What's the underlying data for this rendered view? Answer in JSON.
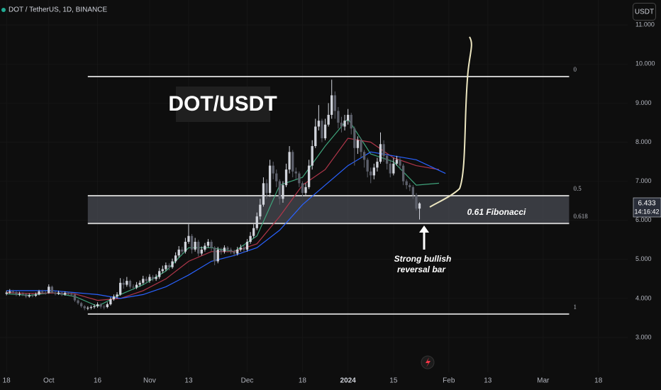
{
  "header": "DOT / TetherUS, 1D, BINANCE",
  "currency_button": "USDT",
  "countdown": "14:16:42",
  "chart_data": {
    "type": "candlestick",
    "title": "DOT/USDT",
    "x": [
      "2023-09-18",
      "2023-09-19",
      "2023-09-20",
      "2023-09-21",
      "2023-09-22",
      "2023-09-23",
      "2023-09-24",
      "2023-09-25",
      "2023-09-26",
      "2023-09-27",
      "2023-09-28",
      "2023-09-29",
      "2023-09-30",
      "2023-10-01",
      "2023-10-02",
      "2023-10-03",
      "2023-10-04",
      "2023-10-05",
      "2023-10-06",
      "2023-10-07",
      "2023-10-08",
      "2023-10-09",
      "2023-10-10",
      "2023-10-11",
      "2023-10-12",
      "2023-10-13",
      "2023-10-14",
      "2023-10-15",
      "2023-10-16",
      "2023-10-17",
      "2023-10-18",
      "2023-10-19",
      "2023-10-20",
      "2023-10-21",
      "2023-10-22",
      "2023-10-23",
      "2023-10-24",
      "2023-10-25",
      "2023-10-26",
      "2023-10-27",
      "2023-10-28",
      "2023-10-29",
      "2023-10-30",
      "2023-10-31",
      "2023-11-01",
      "2023-11-02",
      "2023-11-03",
      "2023-11-04",
      "2023-11-05",
      "2023-11-06",
      "2023-11-07",
      "2023-11-08",
      "2023-11-09",
      "2023-11-10",
      "2023-11-11",
      "2023-11-12",
      "2023-11-13",
      "2023-11-14",
      "2023-11-15",
      "2023-11-16",
      "2023-11-17",
      "2023-11-18",
      "2023-11-19",
      "2023-11-20",
      "2023-11-21",
      "2023-11-22",
      "2023-11-23",
      "2023-11-24",
      "2023-11-25",
      "2023-11-26",
      "2023-11-27",
      "2023-11-28",
      "2023-11-29",
      "2023-11-30",
      "2023-12-01",
      "2023-12-02",
      "2023-12-03",
      "2023-12-04",
      "2023-12-05",
      "2023-12-06",
      "2023-12-07",
      "2023-12-08",
      "2023-12-09",
      "2023-12-10",
      "2023-12-11",
      "2023-12-12",
      "2023-12-13",
      "2023-12-14",
      "2023-12-15",
      "2023-12-16",
      "2023-12-17",
      "2023-12-18",
      "2023-12-19",
      "2023-12-20",
      "2023-12-21",
      "2023-12-22",
      "2023-12-23",
      "2023-12-24",
      "2023-12-25",
      "2023-12-26",
      "2023-12-27",
      "2023-12-28",
      "2023-12-29",
      "2023-12-30",
      "2023-12-31",
      "2024-01-01",
      "2024-01-02",
      "2024-01-03",
      "2024-01-04",
      "2024-01-05",
      "2024-01-06",
      "2024-01-07",
      "2024-01-08",
      "2024-01-09",
      "2024-01-10",
      "2024-01-11",
      "2024-01-12",
      "2024-01-13",
      "2024-01-14",
      "2024-01-15",
      "2024-01-16",
      "2024-01-17",
      "2024-01-18",
      "2024-01-19",
      "2024-01-20",
      "2024-01-21",
      "2024-01-22",
      "2024-01-23"
    ],
    "open": [
      4.12,
      4.15,
      4.18,
      4.16,
      4.1,
      4.12,
      4.11,
      4.05,
      4.08,
      4.07,
      4.1,
      4.18,
      4.15,
      4.14,
      4.3,
      4.15,
      4.12,
      4.15,
      4.1,
      4.14,
      4.12,
      4.1,
      3.95,
      3.88,
      3.8,
      3.75,
      3.76,
      3.78,
      3.8,
      3.85,
      3.79,
      3.78,
      3.85,
      3.98,
      4.05,
      4.1,
      4.4,
      4.35,
      4.45,
      4.3,
      4.28,
      4.35,
      4.4,
      4.5,
      4.45,
      4.55,
      4.5,
      4.55,
      4.7,
      4.75,
      4.85,
      4.8,
      4.95,
      5.1,
      5.25,
      5.2,
      5.45,
      5.6,
      5.25,
      5.45,
      5.15,
      5.25,
      5.35,
      5.45,
      5.3,
      4.95,
      5.25,
      5.2,
      5.3,
      5.25,
      5.2,
      5.15,
      5.25,
      5.3,
      5.25,
      5.45,
      5.6,
      5.8,
      6.1,
      6.4,
      6.95,
      6.7,
      7.4,
      7.2,
      7.0,
      6.55,
      6.9,
      7.3,
      7.75,
      7.25,
      7.2,
      6.95,
      6.7,
      6.85,
      7.4,
      7.9,
      8.4,
      8.55,
      8.1,
      8.45,
      8.7,
      9.2,
      8.8,
      8.5,
      8.4,
      8.55,
      8.7,
      8.35,
      7.85,
      8.05,
      7.75,
      7.55,
      7.25,
      7.15,
      7.35,
      7.5,
      7.95,
      7.65,
      7.45,
      7.2,
      7.45,
      7.55,
      7.4,
      7.0,
      6.9,
      6.85,
      6.65,
      6.3
    ],
    "high": [
      4.2,
      4.24,
      4.22,
      4.19,
      4.17,
      4.16,
      4.14,
      4.13,
      4.12,
      4.15,
      4.22,
      4.22,
      4.19,
      4.36,
      4.33,
      4.19,
      4.2,
      4.18,
      4.18,
      4.17,
      4.15,
      4.12,
      3.98,
      3.91,
      3.83,
      3.8,
      3.82,
      3.85,
      3.9,
      3.88,
      3.84,
      3.9,
      4.03,
      4.1,
      4.16,
      4.52,
      4.5,
      4.55,
      4.48,
      4.36,
      4.42,
      4.46,
      4.58,
      4.56,
      4.62,
      4.6,
      4.62,
      4.78,
      4.84,
      4.92,
      4.9,
      5.02,
      5.18,
      5.34,
      5.32,
      5.55,
      5.9,
      5.65,
      5.55,
      5.5,
      5.33,
      5.42,
      5.52,
      5.5,
      5.34,
      5.32,
      5.3,
      5.36,
      5.34,
      5.3,
      5.25,
      5.32,
      5.38,
      5.36,
      5.52,
      5.7,
      5.9,
      6.2,
      6.55,
      7.1,
      7.05,
      7.55,
      7.5,
      7.3,
      7.05,
      7.0,
      7.45,
      7.9,
      7.8,
      7.35,
      7.25,
      7.0,
      6.95,
      7.55,
      8.05,
      8.6,
      8.95,
      8.6,
      8.6,
      9.0,
      9.6,
      9.3,
      8.9,
      8.65,
      8.7,
      8.85,
      8.75,
      8.4,
      8.15,
      8.1,
      7.8,
      7.6,
      7.35,
      7.45,
      7.6,
      8.25,
      8.05,
      7.7,
      7.55,
      7.6,
      7.65,
      7.6,
      7.45,
      7.05,
      6.95,
      6.9,
      6.7,
      6.46
    ],
    "low": [
      4.08,
      4.12,
      4.12,
      4.06,
      4.06,
      4.06,
      4.01,
      4.02,
      4.03,
      4.04,
      4.08,
      4.11,
      4.1,
      4.12,
      4.12,
      4.08,
      4.09,
      4.06,
      4.07,
      4.08,
      4.05,
      3.91,
      3.84,
      3.76,
      3.7,
      3.7,
      3.72,
      3.74,
      3.76,
      3.74,
      3.72,
      3.75,
      3.82,
      3.94,
      4.0,
      4.07,
      4.25,
      4.3,
      4.25,
      4.22,
      4.24,
      4.3,
      4.36,
      4.38,
      4.4,
      4.44,
      4.45,
      4.5,
      4.64,
      4.7,
      4.72,
      4.76,
      4.9,
      5.05,
      5.12,
      5.15,
      5.4,
      5.15,
      5.2,
      5.08,
      5.1,
      5.2,
      5.3,
      5.22,
      4.85,
      4.9,
      5.12,
      5.15,
      5.18,
      5.14,
      5.08,
      5.1,
      5.2,
      5.18,
      5.2,
      5.4,
      5.55,
      5.75,
      6.02,
      6.35,
      6.55,
      6.6,
      7.05,
      6.85,
      6.4,
      6.45,
      6.85,
      7.2,
      7.1,
      7.05,
      6.85,
      6.6,
      6.65,
      6.8,
      7.3,
      7.85,
      8.3,
      8.0,
      8.05,
      8.4,
      8.6,
      8.6,
      8.35,
      8.25,
      8.3,
      8.45,
      8.2,
      7.4,
      7.7,
      7.6,
      7.35,
      7.1,
      6.95,
      7.05,
      7.25,
      7.45,
      7.5,
      7.3,
      7.1,
      7.15,
      7.4,
      7.3,
      6.9,
      6.8,
      6.75,
      6.55,
      6.25,
      6.02
    ],
    "close": [
      4.15,
      4.18,
      4.16,
      4.1,
      4.12,
      4.11,
      4.05,
      4.08,
      4.07,
      4.1,
      4.18,
      4.15,
      4.14,
      4.3,
      4.15,
      4.12,
      4.15,
      4.1,
      4.14,
      4.12,
      4.1,
      3.95,
      3.88,
      3.8,
      3.75,
      3.76,
      3.78,
      3.8,
      3.85,
      3.79,
      3.78,
      3.85,
      3.98,
      4.05,
      4.1,
      4.4,
      4.35,
      4.45,
      4.3,
      4.28,
      4.35,
      4.4,
      4.5,
      4.45,
      4.55,
      4.5,
      4.55,
      4.7,
      4.75,
      4.85,
      4.8,
      4.95,
      5.1,
      5.25,
      5.2,
      5.45,
      5.6,
      5.25,
      5.45,
      5.15,
      5.25,
      5.35,
      5.45,
      5.3,
      4.95,
      5.25,
      5.2,
      5.3,
      5.25,
      5.2,
      5.15,
      5.25,
      5.3,
      5.25,
      5.45,
      5.6,
      5.8,
      6.1,
      6.4,
      6.95,
      6.7,
      7.4,
      7.2,
      7.0,
      6.55,
      6.9,
      7.3,
      7.75,
      7.25,
      7.2,
      6.95,
      6.7,
      6.85,
      7.4,
      7.9,
      8.4,
      8.55,
      8.1,
      8.45,
      8.7,
      9.2,
      8.8,
      8.5,
      8.4,
      8.55,
      8.7,
      8.35,
      7.85,
      8.05,
      7.75,
      7.55,
      7.25,
      7.15,
      7.35,
      7.5,
      7.95,
      7.65,
      7.45,
      7.2,
      7.45,
      7.55,
      7.4,
      7.0,
      6.9,
      6.85,
      6.65,
      6.3,
      6.433
    ],
    "up_color": "#d1d4dc",
    "down_color": "#5d606b",
    "lines": [
      {
        "color": "#3fa37b",
        "x": [
          "2023-09-18",
          "2023-09-25",
          "2023-10-02",
          "2023-10-09",
          "2023-10-16",
          "2023-10-23",
          "2023-10-30",
          "2023-11-06",
          "2023-11-13",
          "2023-11-20",
          "2023-11-27",
          "2023-12-04",
          "2023-12-11",
          "2023-12-18",
          "2023-12-25",
          "2024-01-01",
          "2024-01-08",
          "2024-01-15",
          "2024-01-22",
          "2024-01-29"
        ],
        "values": [
          4.12,
          4.08,
          4.15,
          4.05,
          3.8,
          4.1,
          4.35,
          4.7,
          5.3,
          5.3,
          5.2,
          5.6,
          6.9,
          7.1,
          7.9,
          8.6,
          7.7,
          7.5,
          6.9,
          6.95
        ]
      },
      {
        "color": "#b0364a",
        "x": [
          "2023-09-18",
          "2023-09-25",
          "2023-10-02",
          "2023-10-09",
          "2023-10-16",
          "2023-10-23",
          "2023-10-30",
          "2023-11-06",
          "2023-11-13",
          "2023-11-20",
          "2023-11-27",
          "2023-12-04",
          "2023-12-11",
          "2023-12-18",
          "2023-12-25",
          "2024-01-01",
          "2024-01-08",
          "2024-01-15",
          "2024-01-22",
          "2024-01-29"
        ],
        "values": [
          4.15,
          4.13,
          4.14,
          4.12,
          3.95,
          4.0,
          4.2,
          4.5,
          4.95,
          5.2,
          5.2,
          5.4,
          6.1,
          6.9,
          7.3,
          8.1,
          8.0,
          7.6,
          7.4,
          7.3
        ]
      },
      {
        "color": "#2962ff",
        "x": [
          "2023-09-18",
          "2023-09-25",
          "2023-10-02",
          "2023-10-09",
          "2023-10-16",
          "2023-10-23",
          "2023-10-30",
          "2023-11-06",
          "2023-11-13",
          "2023-11-20",
          "2023-11-27",
          "2023-12-04",
          "2023-12-11",
          "2023-12-18",
          "2023-12-25",
          "2024-01-01",
          "2024-01-08",
          "2024-01-15",
          "2024-01-22",
          "2024-01-31"
        ],
        "values": [
          4.2,
          4.2,
          4.2,
          4.15,
          4.1,
          4.0,
          4.1,
          4.3,
          4.6,
          4.95,
          5.1,
          5.3,
          5.75,
          6.4,
          6.9,
          7.4,
          7.75,
          7.65,
          7.55,
          7.2
        ]
      }
    ],
    "fib_range": [
      "2023-10-13",
      "2024-03-09"
    ],
    "fib_levels": [
      {
        "label": "0",
        "value": 9.68
      },
      {
        "label": "0.5",
        "value": 6.63
      },
      {
        "label": "0.618",
        "value": 5.92
      },
      {
        "label": "1",
        "value": 3.6
      }
    ],
    "fib_zone_color": "#5d606b",
    "annotation": "0.61 Fibonacci",
    "reversal_note": [
      "Strong bullish",
      "reversal bar"
    ],
    "xlim": [
      "2023-09-16",
      "2024-03-27"
    ],
    "xticks": [
      {
        "value": "2023-09-18",
        "label": "18"
      },
      {
        "value": "2023-10-01",
        "label": "Oct"
      },
      {
        "value": "2023-10-16",
        "label": "16"
      },
      {
        "value": "2023-11-01",
        "label": "Nov"
      },
      {
        "value": "2023-11-13",
        "label": "13"
      },
      {
        "value": "2023-12-01",
        "label": "Dec"
      },
      {
        "value": "2023-12-18",
        "label": "18"
      },
      {
        "value": "2024-01-01",
        "label": "2024"
      },
      {
        "value": "2024-01-15",
        "label": "15"
      },
      {
        "value": "2024-02-01",
        "label": "Feb"
      },
      {
        "value": "2024-02-13",
        "label": "13"
      },
      {
        "value": "2024-03-01",
        "label": "Mar"
      },
      {
        "value": "2024-03-18",
        "label": "18"
      }
    ],
    "ylim": [
      2.11,
      11.64
    ],
    "yticks": [
      {
        "value": 3,
        "label": "3.000"
      },
      {
        "value": 4,
        "label": "4.000"
      },
      {
        "value": 5,
        "label": "5.000"
      },
      {
        "value": 6,
        "label": "6.000"
      },
      {
        "value": 7,
        "label": "7.000"
      },
      {
        "value": 8,
        "label": "8.000"
      },
      {
        "value": 9,
        "label": "9.000"
      },
      {
        "value": 10,
        "label": "10.000"
      },
      {
        "value": 11,
        "label": "11.000"
      }
    ],
    "grid": true
  }
}
